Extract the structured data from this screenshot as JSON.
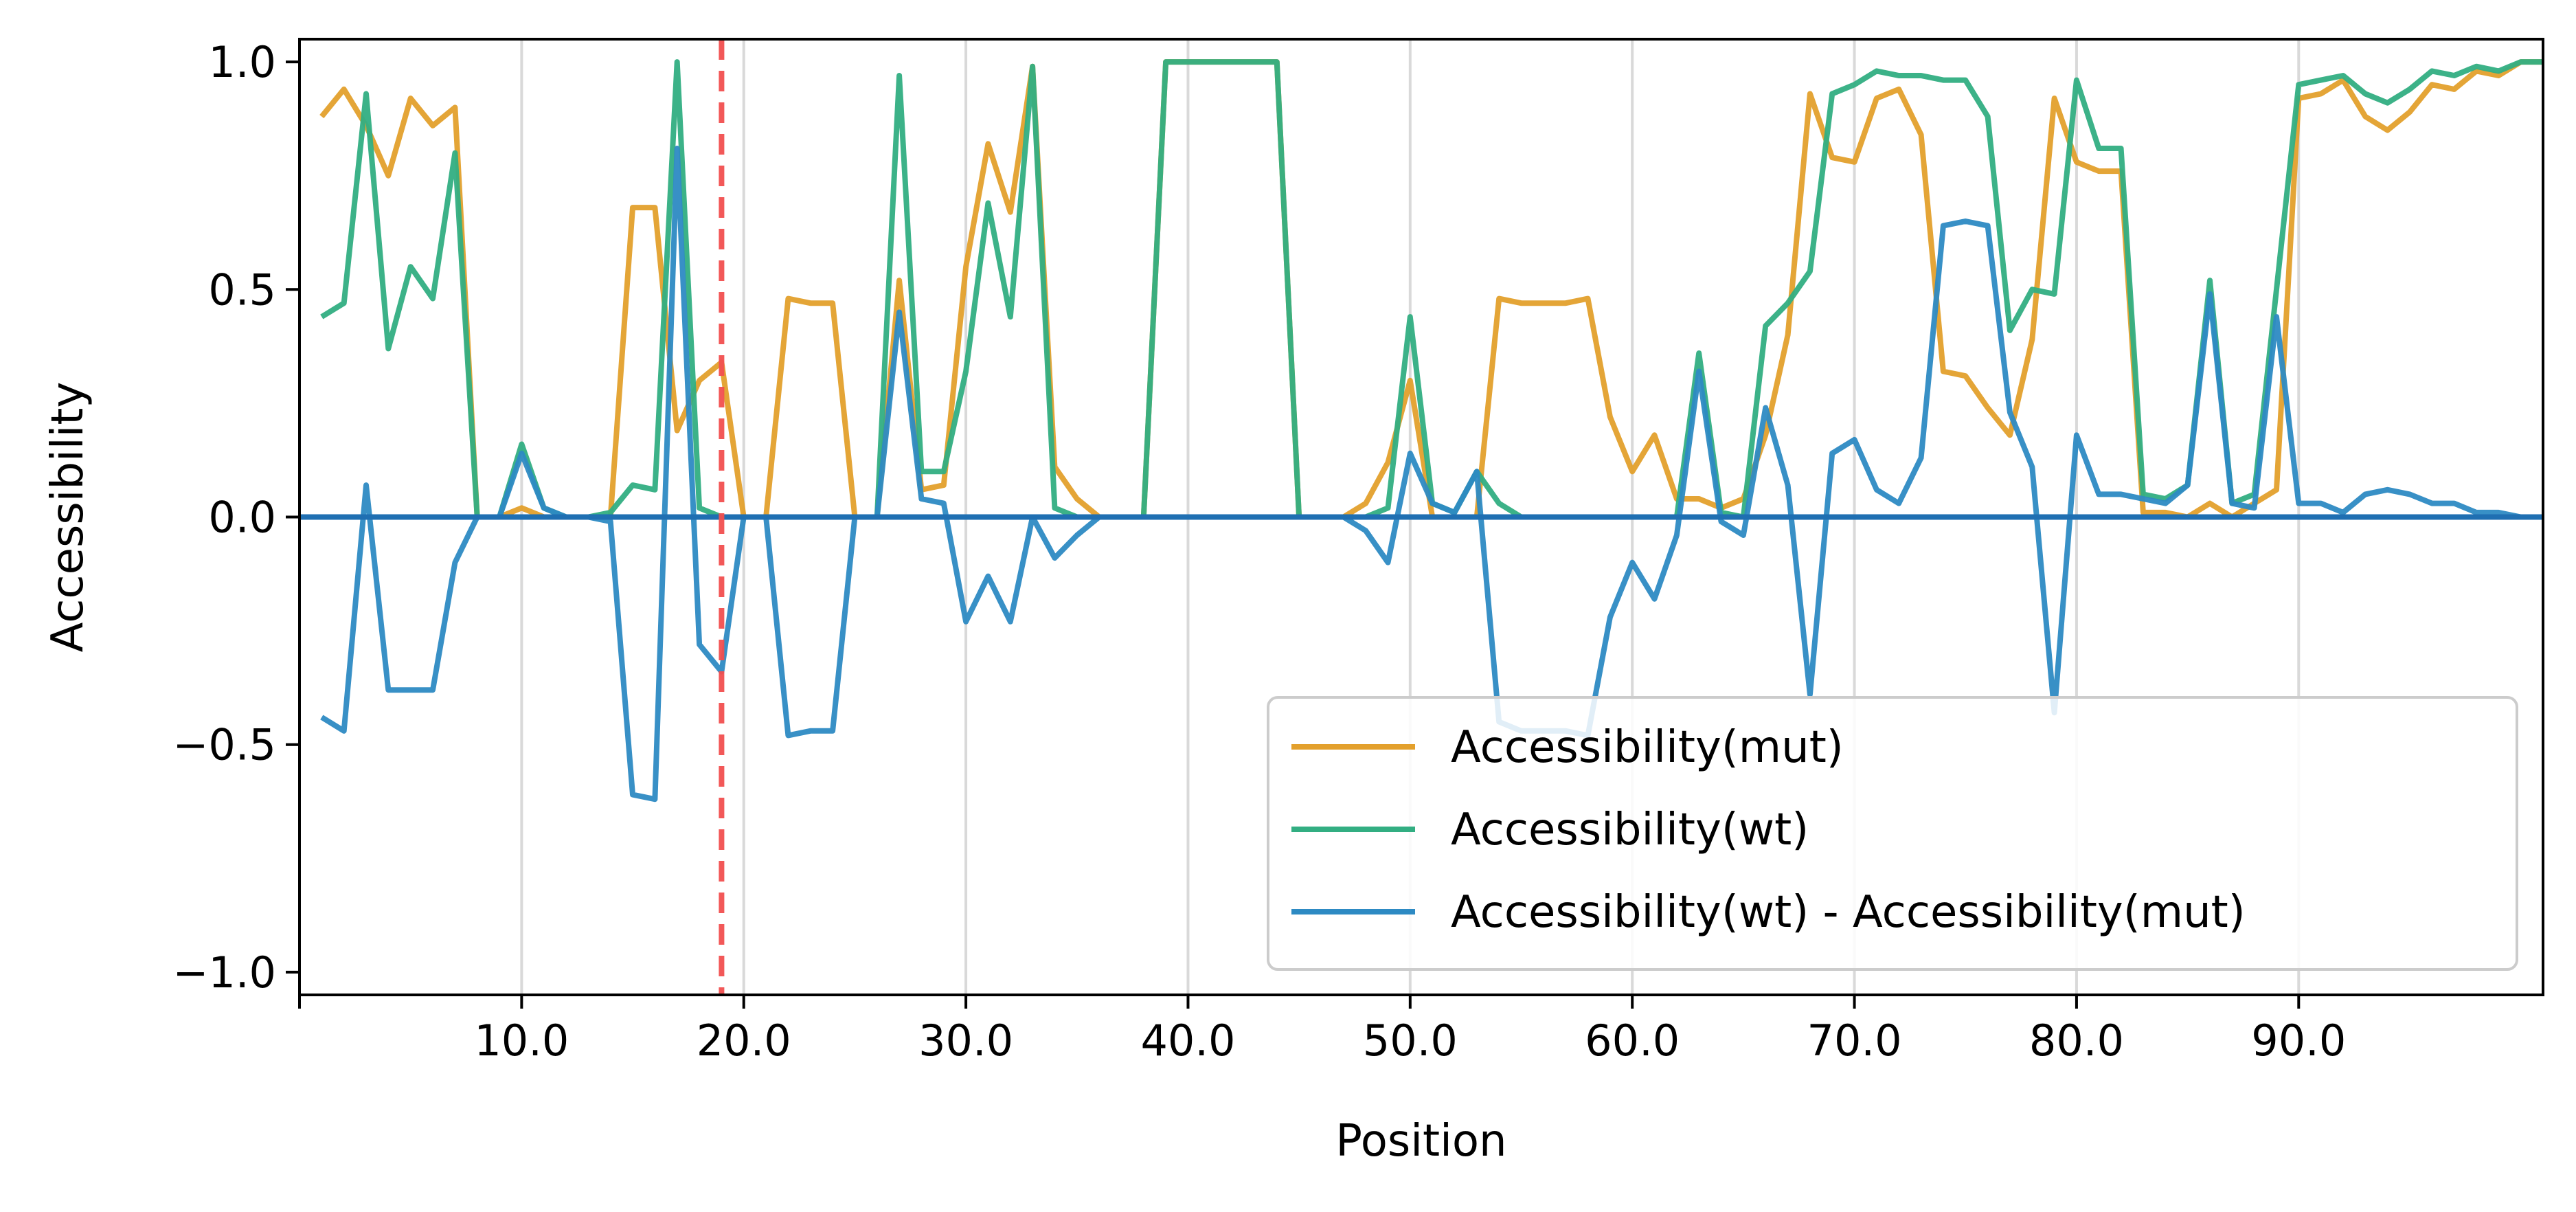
{
  "chart_data": {
    "type": "line",
    "title": "",
    "xlabel": "Position",
    "ylabel": "Accessibility",
    "xlim": [
      0,
      101
    ],
    "ylim": [
      -1.05,
      1.05
    ],
    "x_tick_values": [
      10,
      20,
      30,
      40,
      50,
      60,
      70,
      80,
      90
    ],
    "x_tick_labels": [
      "10.0",
      "20.0",
      "30.0",
      "40.0",
      "50.0",
      "60.0",
      "70.0",
      "80.0",
      "90.0"
    ],
    "y_tick_values": [
      1.0,
      0.5,
      0.0,
      -0.5,
      -1.0
    ],
    "y_tick_labels": [
      "1.0",
      "0.5",
      "0.0",
      "−0.5",
      "−1.0"
    ],
    "grid": "vertical",
    "legend_position": "lower-right",
    "vertical_marker": {
      "x": 19,
      "color": "#f14f4f",
      "style": "dashed"
    },
    "zero_line_color": "#1f6fb2",
    "x": [
      1,
      2,
      3,
      4,
      5,
      6,
      7,
      8,
      9,
      10,
      11,
      12,
      13,
      14,
      15,
      16,
      17,
      18,
      19,
      20,
      21,
      22,
      23,
      24,
      25,
      26,
      27,
      28,
      29,
      30,
      31,
      32,
      33,
      34,
      35,
      36,
      37,
      38,
      39,
      40,
      41,
      42,
      43,
      44,
      45,
      46,
      47,
      48,
      49,
      50,
      51,
      52,
      53,
      54,
      55,
      56,
      57,
      58,
      59,
      60,
      61,
      62,
      63,
      64,
      65,
      66,
      67,
      68,
      69,
      70,
      71,
      72,
      73,
      74,
      75,
      76,
      77,
      78,
      79,
      80,
      81,
      82,
      83,
      84,
      85,
      86,
      87,
      88,
      89,
      90,
      91,
      92,
      93,
      94,
      95,
      96,
      97,
      98,
      99,
      100,
      101
    ],
    "series": [
      {
        "name": "Accessibility(mut)",
        "color": "#e3a02c",
        "values": [
          0.88,
          0.94,
          0.86,
          0.75,
          0.92,
          0.86,
          0.9,
          0.0,
          0.0,
          0.02,
          0.0,
          0.0,
          0.0,
          0.0,
          0.68,
          0.68,
          0.19,
          0.3,
          0.34,
          0.0,
          0.0,
          0.48,
          0.47,
          0.47,
          0.0,
          0.0,
          0.52,
          0.06,
          0.07,
          0.55,
          0.82,
          0.67,
          0.99,
          0.11,
          0.04,
          0.0,
          0.0,
          0.0,
          1.0,
          1.0,
          1.0,
          1.0,
          1.0,
          1.0,
          0.0,
          0.0,
          0.0,
          0.03,
          0.12,
          0.3,
          0.0,
          0.0,
          0.0,
          0.48,
          0.47,
          0.47,
          0.47,
          0.48,
          0.22,
          0.1,
          0.18,
          0.04,
          0.04,
          0.02,
          0.04,
          0.18,
          0.4,
          0.93,
          0.79,
          0.78,
          0.92,
          0.94,
          0.84,
          0.32,
          0.31,
          0.24,
          0.18,
          0.39,
          0.92,
          0.78,
          0.76,
          0.76,
          0.01,
          0.01,
          0.0,
          0.03,
          0.0,
          0.03,
          0.06,
          0.92,
          0.93,
          0.96,
          0.88,
          0.85,
          0.89,
          0.95,
          0.94,
          0.98,
          0.97,
          1.0,
          1.0
        ]
      },
      {
        "name": "Accessibility(wt)",
        "color": "#32ae82",
        "values": [
          0.44,
          0.47,
          0.93,
          0.37,
          0.55,
          0.48,
          0.8,
          0.0,
          0.0,
          0.16,
          0.02,
          0.0,
          0.0,
          0.01,
          0.07,
          0.06,
          1.0,
          0.02,
          0.0,
          0.0,
          0.0,
          0.0,
          0.0,
          0.0,
          0.0,
          0.0,
          0.97,
          0.1,
          0.1,
          0.32,
          0.69,
          0.44,
          0.99,
          0.02,
          0.0,
          0.0,
          0.0,
          0.0,
          1.0,
          1.0,
          1.0,
          1.0,
          1.0,
          1.0,
          0.0,
          0.0,
          0.0,
          0.0,
          0.02,
          0.44,
          0.03,
          0.01,
          0.1,
          0.03,
          0.0,
          0.0,
          0.0,
          0.0,
          0.0,
          0.0,
          0.0,
          0.0,
          0.36,
          0.01,
          0.0,
          0.42,
          0.47,
          0.54,
          0.93,
          0.95,
          0.98,
          0.97,
          0.97,
          0.96,
          0.96,
          0.88,
          0.41,
          0.5,
          0.49,
          0.96,
          0.81,
          0.81,
          0.05,
          0.04,
          0.07,
          0.52,
          0.03,
          0.05,
          0.5,
          0.95,
          0.96,
          0.97,
          0.93,
          0.91,
          0.94,
          0.98,
          0.97,
          0.99,
          0.98,
          1.0,
          1.0
        ]
      },
      {
        "name": "Accessibility(wt) - Accessibility(mut)",
        "color": "#2d8ac3",
        "values": [
          -0.44,
          -0.47,
          0.07,
          -0.38,
          -0.38,
          -0.38,
          -0.1,
          0.0,
          0.0,
          0.14,
          0.02,
          0.0,
          0.0,
          -0.01,
          -0.61,
          -0.62,
          0.81,
          -0.28,
          -0.34,
          0.0,
          0.0,
          -0.48,
          -0.47,
          -0.47,
          0.0,
          0.0,
          0.45,
          0.04,
          0.03,
          -0.23,
          -0.13,
          -0.23,
          0.0,
          -0.09,
          -0.04,
          0.0,
          0.0,
          0.0,
          0.0,
          0.0,
          0.0,
          0.0,
          0.0,
          0.0,
          0.0,
          0.0,
          0.0,
          -0.03,
          -0.1,
          0.14,
          0.03,
          0.01,
          0.1,
          -0.45,
          -0.47,
          -0.47,
          -0.47,
          -0.48,
          -0.22,
          -0.1,
          -0.18,
          -0.04,
          0.32,
          -0.01,
          -0.04,
          0.24,
          0.07,
          -0.39,
          0.14,
          0.17,
          0.06,
          0.03,
          0.13,
          0.64,
          0.65,
          0.64,
          0.23,
          0.11,
          -0.43,
          0.18,
          0.05,
          0.05,
          0.04,
          0.03,
          0.07,
          0.49,
          0.03,
          0.02,
          0.44,
          0.03,
          0.03,
          0.01,
          0.05,
          0.06,
          0.05,
          0.03,
          0.03,
          0.01,
          0.01,
          0.0,
          0.0
        ]
      }
    ]
  }
}
